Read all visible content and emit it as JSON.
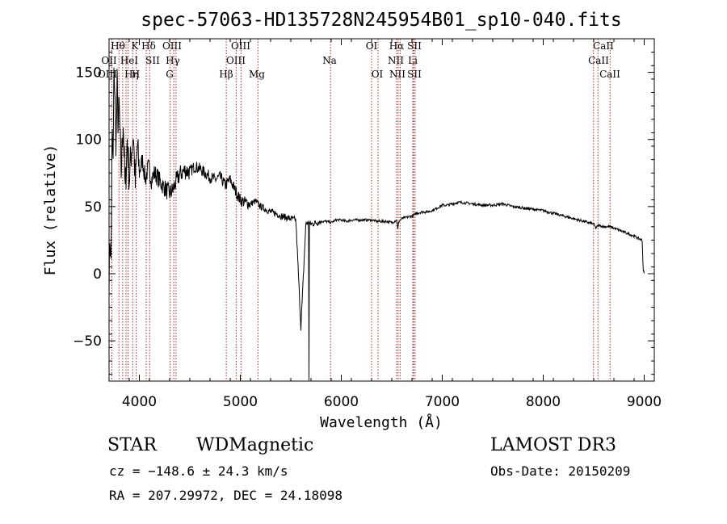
{
  "chart_data": {
    "type": "line",
    "title": "spec-57063-HD135728N245954B01_sp10-040.fits",
    "xlabel": "Wavelength (Å)",
    "ylabel": "Flux (relative)",
    "xlim": [
      3700,
      9100
    ],
    "ylim": [
      -80,
      175
    ],
    "x_ticks": [
      4000,
      5000,
      6000,
      7000,
      8000,
      9000
    ],
    "y_ticks": [
      -50,
      0,
      50,
      100,
      150
    ],
    "x_tick_labels": [
      "4000",
      "5000",
      "6000",
      "7000",
      "8000",
      "9000"
    ],
    "y_tick_labels": [
      "−50",
      "0",
      "50",
      "100",
      "150"
    ],
    "grid": false,
    "series": [
      {
        "name": "flux",
        "x": [
          3700,
          3710,
          3720,
          3730,
          3740,
          3750,
          3760,
          3770,
          3780,
          3790,
          3800,
          3820,
          3840,
          3860,
          3880,
          3900,
          3920,
          3940,
          3960,
          3980,
          4000,
          4030,
          4060,
          4090,
          4120,
          4150,
          4180,
          4210,
          4240,
          4270,
          4300,
          4330,
          4360,
          4400,
          4450,
          4500,
          4550,
          4600,
          4650,
          4700,
          4750,
          4800,
          4850,
          4900,
          4950,
          5000,
          5050,
          5100,
          5150,
          5200,
          5250,
          5300,
          5350,
          5400,
          5450,
          5500,
          5550,
          5600,
          5650,
          5700,
          5750,
          5800,
          5850,
          5900,
          5950,
          6000,
          6050,
          6100,
          6150,
          6200,
          6250,
          6300,
          6350,
          6400,
          6450,
          6500,
          6550,
          6560,
          6570,
          6600,
          6650,
          6700,
          6750,
          6800,
          6850,
          6900,
          6950,
          7000,
          7050,
          7100,
          7150,
          7200,
          7300,
          7400,
          7500,
          7600,
          7700,
          7800,
          7900,
          8000,
          8100,
          8200,
          8300,
          8400,
          8500,
          8520,
          8550,
          8600,
          8650,
          8700,
          8800,
          8900,
          8950,
          8980,
          8990,
          9000
        ],
        "y": [
          0,
          25,
          10,
          105,
          80,
          160,
          125,
          95,
          140,
          110,
          125,
          75,
          115,
          60,
          100,
          70,
          90,
          105,
          65,
          95,
          75,
          85,
          70,
          80,
          70,
          75,
          72,
          68,
          65,
          62,
          60,
          62,
          68,
          74,
          77,
          76,
          80,
          78,
          75,
          72,
          70,
          72,
          66,
          70,
          62,
          55,
          53,
          52,
          54,
          50,
          48,
          46,
          45,
          43,
          42,
          41,
          40,
          -40,
          38,
          37,
          38,
          39,
          39,
          38,
          40,
          40,
          39,
          40,
          40,
          40,
          40,
          40,
          39,
          39,
          39,
          38,
          40,
          33,
          39,
          41,
          42,
          43,
          45,
          46,
          46,
          47,
          49,
          51,
          51,
          52,
          53,
          53,
          52,
          51,
          51,
          52,
          50,
          49,
          48,
          47,
          45,
          43,
          41,
          39,
          37,
          34,
          36,
          35,
          35,
          34,
          31,
          28,
          26,
          25,
          3,
          0
        ]
      }
    ],
    "lines": [
      {
        "name": "Hθ",
        "x": 3798
      },
      {
        "name": "OII",
        "x": 3728
      },
      {
        "name": "OIII",
        "x": 3868
      },
      {
        "name": "K",
        "x": 3934
      },
      {
        "name": "HeI",
        "x": 3889
      },
      {
        "name": "Hη",
        "x": 3835
      },
      {
        "name": "H",
        "x": 3969
      },
      {
        "name": "SII",
        "x": 4068
      },
      {
        "name": "Hδ",
        "x": 4102
      },
      {
        "name": "OIII",
        "x": 4363
      },
      {
        "name": "Hγ",
        "x": 4341
      },
      {
        "name": "G",
        "x": 4305
      },
      {
        "name": "Hβ",
        "x": 4861
      },
      {
        "name": "OIII",
        "x": 4959
      },
      {
        "name": "OIII",
        "x": 5007
      },
      {
        "name": "Mg",
        "x": 5175
      },
      {
        "name": "Na",
        "x": 5893
      },
      {
        "name": "OI",
        "x": 6300
      },
      {
        "name": "OI",
        "x": 6364
      },
      {
        "name": "Hα",
        "x": 6563
      },
      {
        "name": "NII",
        "x": 6548
      },
      {
        "name": "NII",
        "x": 6583
      },
      {
        "name": "SII",
        "x": 6717
      },
      {
        "name": "Li",
        "x": 6708
      },
      {
        "name": "SII",
        "x": 6731
      },
      {
        "name": "CaII",
        "x": 8498
      },
      {
        "name": "CaII",
        "x": 8542
      },
      {
        "name": "CaII",
        "x": 8662
      }
    ],
    "line_labels": {
      "row1": [
        "Hθ",
        "K",
        "Hδ",
        "OIII",
        "OIII",
        "OI",
        "Hα",
        "SII",
        "CaII"
      ],
      "row2": [
        "OII",
        "HeI",
        "SII",
        "Hγ",
        "OIII",
        "Na",
        "NII",
        "Li",
        "CaII"
      ],
      "row3": [
        "OIII",
        "Hη",
        "H",
        "G",
        "Hβ",
        "Mg",
        "OI",
        "NII",
        "SII",
        "CaII"
      ]
    }
  },
  "info": {
    "class": "STAR",
    "subclass": "WDMagnetic",
    "survey": "LAMOST DR3",
    "cz": "cz = −148.6 ± 24.3 km/s",
    "obs_date": "Obs-Date: 20150209",
    "coords": "RA = 207.29972, DEC =  24.18098"
  },
  "colors": {
    "axis": "#000000",
    "spectrum": "#000000",
    "lines": "#b22222"
  }
}
